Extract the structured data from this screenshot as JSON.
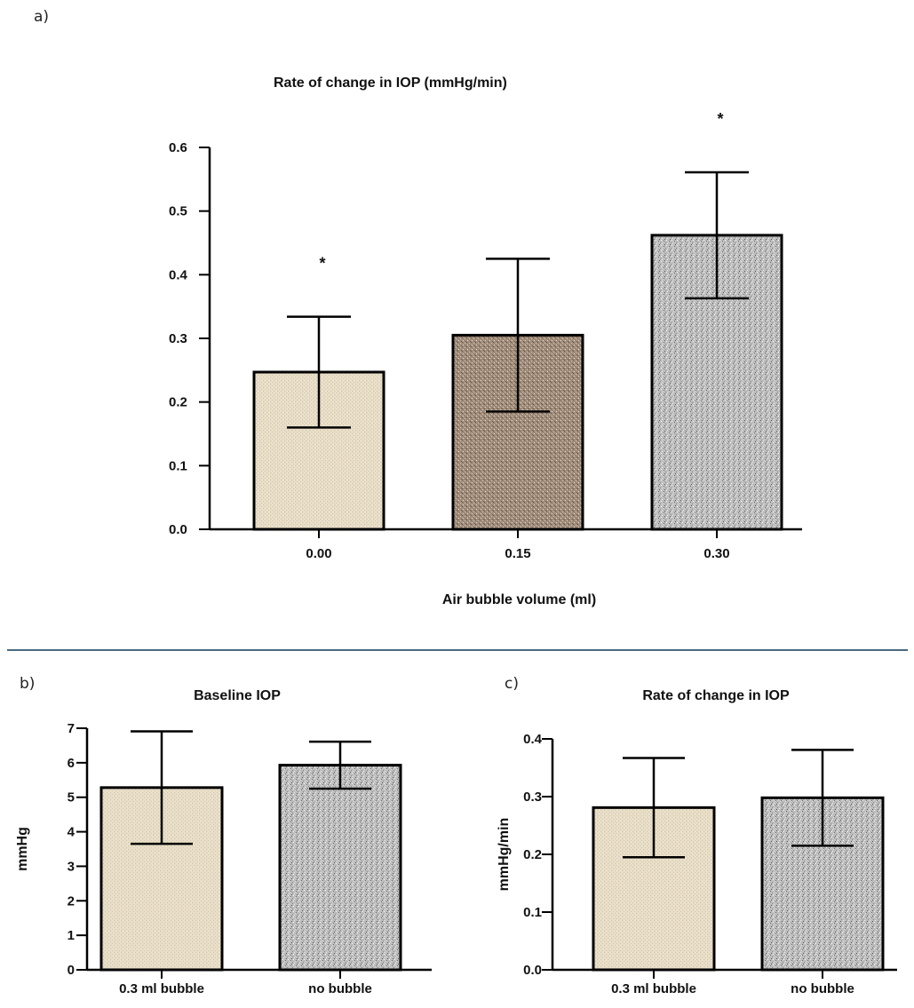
{
  "divider_color": "#4a6a80",
  "chart_data": [
    {
      "panel": "a)",
      "type": "bar",
      "title": "Rate of change in IOP (mmHg/min)",
      "xlabel": "Air bubble volume (ml)",
      "ylabel": "",
      "categories": [
        "0.00",
        "0.15",
        "0.30"
      ],
      "values": [
        0.247,
        0.305,
        0.462
      ],
      "errors": [
        0.087,
        0.12,
        0.099
      ],
      "annotations": [
        "*",
        "",
        "*"
      ],
      "yticks": [
        "0.0",
        "0.1",
        "0.2",
        "0.3",
        "0.4",
        "0.5",
        "0.6"
      ],
      "ylim": [
        0,
        0.6
      ],
      "bar_colors": [
        "#e6dbc4",
        "#9e8a78",
        "#b8b8b8"
      ],
      "grid": false
    },
    {
      "panel": "b)",
      "type": "bar",
      "title": "Baseline IOP",
      "xlabel": "",
      "ylabel": "mmHg",
      "categories": [
        "0.3 ml bubble",
        "no bubble"
      ],
      "values": [
        5.28,
        5.93
      ],
      "errors": [
        1.63,
        0.68
      ],
      "annotations": [
        "",
        ""
      ],
      "yticks": [
        "0",
        "1",
        "2",
        "3",
        "4",
        "5",
        "6",
        "7"
      ],
      "ylim": [
        0,
        7
      ],
      "bar_colors": [
        "#e6dbc4",
        "#b8b8b8"
      ],
      "grid": false
    },
    {
      "panel": "c)",
      "type": "bar",
      "title": "Rate of change in IOP",
      "xlabel": "",
      "ylabel": "mmHg/min",
      "categories": [
        "0.3 ml bubble",
        "no bubble"
      ],
      "values": [
        0.281,
        0.298
      ],
      "errors": [
        0.086,
        0.083
      ],
      "annotations": [
        "",
        ""
      ],
      "yticks": [
        "0.0",
        "0.1",
        "0.2",
        "0.3",
        "0.4"
      ],
      "ylim": [
        0,
        0.4
      ],
      "bar_colors": [
        "#e6dbc4",
        "#b8b8b8"
      ],
      "grid": false
    }
  ]
}
